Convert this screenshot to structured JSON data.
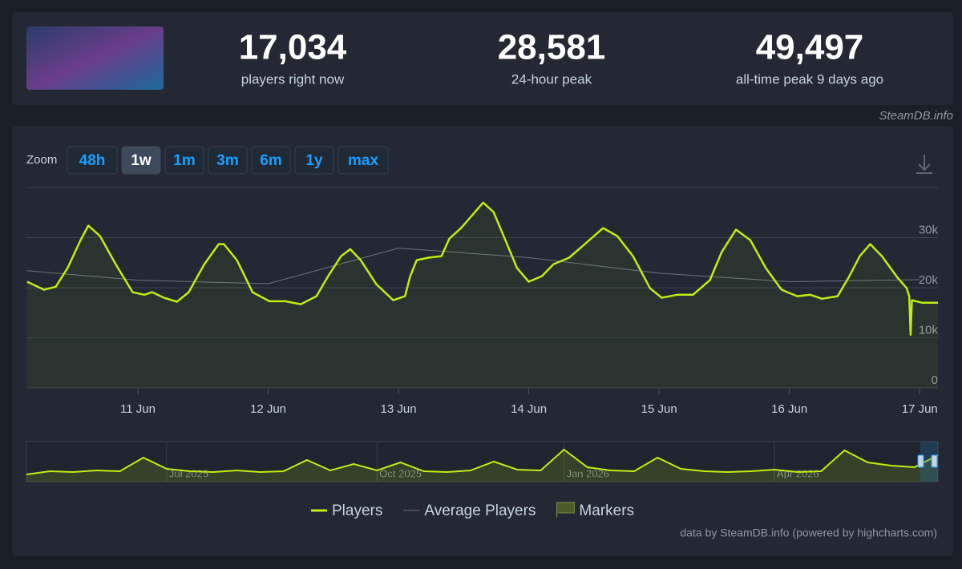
{
  "stats": [
    {
      "value": "17,034",
      "label": "players right now"
    },
    {
      "value": "28,581",
      "label": "24-hour peak"
    },
    {
      "value": "49,497",
      "label": "all-time peak 9 days ago"
    }
  ],
  "source": "SteamDB.info",
  "zoom": {
    "label": "Zoom",
    "buttons": [
      "48h",
      "1w",
      "1m",
      "3m",
      "6m",
      "1y",
      "max"
    ],
    "selected": 1
  },
  "chart_data": [
    {
      "type": "line",
      "xlim": [
        10.145,
        17.14
      ],
      "xticks": [
        {
          "value": 11,
          "label": "11 Jun"
        },
        {
          "value": 12,
          "label": "12 Jun"
        },
        {
          "value": 13,
          "label": "13 Jun"
        },
        {
          "value": 14,
          "label": "14 Jun"
        },
        {
          "value": 15,
          "label": "15 Jun"
        },
        {
          "value": 16,
          "label": "16 Jun"
        },
        {
          "value": 17,
          "label": "17 Jun"
        }
      ],
      "ylim": [
        0,
        40000
      ],
      "yticks": [
        0,
        {
          "value": 10000,
          "label": "10k"
        },
        {
          "value": 20000,
          "label": "20k"
        },
        {
          "value": 30000,
          "label": "30k"
        }
      ],
      "grid": true,
      "series": [
        {
          "name": "Players",
          "color": "#beee11",
          "x": [
            10.15,
            10.28,
            10.37,
            10.46,
            10.56,
            10.62,
            10.71,
            10.83,
            10.96,
            11.05,
            11.11,
            11.2,
            11.3,
            11.39,
            11.51,
            11.62,
            11.66,
            11.76,
            11.88,
            12.01,
            12.13,
            12.25,
            12.37,
            12.46,
            12.56,
            12.63,
            12.71,
            12.83,
            12.96,
            13.05,
            13.09,
            13.14,
            13.23,
            13.33,
            13.39,
            13.48,
            13.57,
            13.65,
            13.73,
            13.82,
            13.91,
            14.0,
            14.1,
            14.19,
            14.31,
            14.43,
            14.57,
            14.68,
            14.8,
            14.93,
            15.02,
            15.14,
            15.26,
            15.39,
            15.48,
            15.59,
            15.7,
            15.82,
            15.94,
            16.06,
            16.16,
            16.25,
            16.37,
            16.46,
            16.54,
            16.62,
            16.71,
            16.83,
            16.9,
            16.92,
            16.93,
            16.94,
            17.02,
            17.14
          ],
          "values": [
            21200,
            19600,
            20200,
            23900,
            29500,
            32400,
            30300,
            24700,
            19100,
            18600,
            19100,
            18000,
            17200,
            19100,
            24700,
            28700,
            28700,
            25500,
            19100,
            17300,
            17300,
            16700,
            18300,
            22300,
            26300,
            27700,
            25500,
            20700,
            17500,
            18300,
            22300,
            25500,
            26000,
            26300,
            29800,
            31900,
            34600,
            37000,
            35100,
            29500,
            23900,
            21200,
            22300,
            24700,
            26000,
            28700,
            31900,
            30300,
            26300,
            19900,
            18000,
            18600,
            18600,
            21500,
            27100,
            31600,
            29500,
            23900,
            19600,
            18300,
            18600,
            17800,
            18300,
            22300,
            26300,
            28700,
            26300,
            22000,
            19900,
            18300,
            10600,
            17500,
            17000,
            17000
          ]
        },
        {
          "name": "Average Players",
          "color": "#6b7380",
          "x": [
            10.15,
            11,
            12,
            13,
            14,
            15,
            16,
            17
          ],
          "values": [
            23400,
            21500,
            20800,
            27900,
            26000,
            22900,
            21200,
            21600
          ]
        }
      ],
      "markers": {
        "name": "Markers",
        "color": "#4c5a2a"
      }
    },
    {
      "type": "area",
      "color": "#beee11",
      "ylim": [
        0,
        50000
      ],
      "categories": [
        null,
        null,
        null,
        null,
        null,
        null,
        "Jul 2025",
        null,
        null,
        null,
        null,
        null,
        null,
        null,
        null,
        "Oct 2025",
        null,
        null,
        null,
        null,
        null,
        null,
        null,
        "Jan 2026",
        null,
        null,
        null,
        null,
        null,
        null,
        null,
        null,
        "Apr 2026",
        null,
        null,
        null,
        null,
        null,
        null,
        null
      ],
      "values": [
        9000,
        13000,
        12000,
        14000,
        13000,
        30000,
        16000,
        13000,
        12000,
        14000,
        12000,
        13000,
        27000,
        14000,
        22000,
        14000,
        24000,
        13000,
        12000,
        14000,
        25000,
        15000,
        14000,
        40000,
        18000,
        14000,
        13000,
        30000,
        16000,
        13000,
        12000,
        13000,
        15000,
        12000,
        13000,
        39000,
        24000,
        20000,
        18000,
        33000
      ]
    }
  ],
  "credits": "data by SteamDB.info (powered by highcharts.com)"
}
